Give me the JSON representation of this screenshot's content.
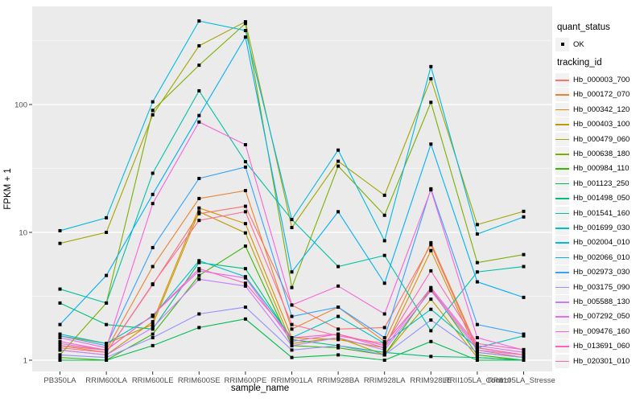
{
  "chart_data": {
    "type": "line",
    "xlabel": "sample_name",
    "ylabel": "FPKM + 1",
    "y_scale": "log10",
    "y_ticks": [
      1,
      10,
      100
    ],
    "ylim": [
      0.82,
      585
    ],
    "grid": true,
    "panel_bg": "#EBEBEB",
    "grid_color": "#FFFFFF",
    "tick_label_color": "#4D4D4D",
    "point_color": "#000000",
    "legend_position": "right",
    "legend": {
      "quant_status_title": "quant_status",
      "quant_status_items": [
        "OK"
      ],
      "tracking_id_title": "tracking_id"
    },
    "categories": [
      "PB350LA",
      "RRIM600LA",
      "RRIM600LE",
      "RRIM600SE",
      "RRIM600PE",
      "RRIM901LA",
      "RRIM928BA",
      "RRIM928LA",
      "RRIM928LE",
      "RRII105LA_Control",
      "RRII105LA_Stressed"
    ],
    "series": [
      {
        "name": "Hb_000003_700",
        "color": "#F8766D",
        "values": [
          1.25,
          1.15,
          3.9,
          14.0,
          16.0,
          2.7,
          1.75,
          1.8,
          8.0,
          1.2,
          1.05
        ]
      },
      {
        "name": "Hb_000172_070",
        "color": "#EA8331",
        "values": [
          1.3,
          1.2,
          5.4,
          18.4,
          21.2,
          1.75,
          2.6,
          1.4,
          8.3,
          1.25,
          1.1
        ]
      },
      {
        "name": "Hb_000342_120",
        "color": "#D89000",
        "values": [
          1.2,
          1.1,
          2.0,
          15.5,
          11.7,
          1.5,
          1.45,
          1.25,
          7.2,
          1.15,
          1.05
        ]
      },
      {
        "name": "Hb_000403_100",
        "color": "#C09B00",
        "values": [
          1.55,
          1.35,
          1.9,
          14.5,
          9.9,
          1.35,
          1.5,
          1.1,
          3.0,
          1.05,
          1.0
        ]
      },
      {
        "name": "Hb_000479_060",
        "color": "#A3A500",
        "values": [
          8.2,
          10.0,
          83,
          288,
          444,
          10.9,
          36,
          19.5,
          159,
          11.5,
          14.6
        ]
      },
      {
        "name": "Hb_000638_180",
        "color": "#7CAE00",
        "values": [
          1.1,
          2.8,
          90,
          203,
          430,
          3.7,
          33,
          13.6,
          104,
          5.8,
          6.7
        ]
      },
      {
        "name": "Hb_000984_110",
        "color": "#39B600",
        "values": [
          1.05,
          1.0,
          1.6,
          4.6,
          7.8,
          1.3,
          1.25,
          1.1,
          3.6,
          1.1,
          1.0
        ]
      },
      {
        "name": "Hb_001123_250",
        "color": "#00BB4E",
        "values": [
          1.0,
          1.0,
          1.3,
          1.8,
          2.1,
          1.05,
          1.1,
          1.0,
          1.4,
          1.0,
          1.0
        ]
      },
      {
        "name": "Hb_001498_050",
        "color": "#00BF7D",
        "values": [
          2.8,
          1.9,
          1.75,
          5.8,
          5.2,
          1.45,
          1.3,
          1.15,
          1.07,
          1.05,
          1.0
        ]
      },
      {
        "name": "Hb_001541_160",
        "color": "#00C1A3",
        "values": [
          3.6,
          2.8,
          29,
          128,
          35.7,
          12.6,
          5.4,
          6.6,
          1.7,
          4.9,
          5.4
        ]
      },
      {
        "name": "Hb_001699_030",
        "color": "#00BFC4",
        "values": [
          1.6,
          1.35,
          2.2,
          6.0,
          4.5,
          1.5,
          2.2,
          1.35,
          2.5,
          1.25,
          1.55
        ]
      },
      {
        "name": "Hb_002004_010",
        "color": "#00BAE0",
        "values": [
          10.3,
          13.0,
          105,
          450,
          379,
          12.6,
          44,
          8.6,
          198,
          9.7,
          13.2
        ]
      },
      {
        "name": "Hb_002066_010",
        "color": "#00B0F6",
        "values": [
          1.9,
          4.6,
          19.8,
          82,
          337,
          4.9,
          14.5,
          4.0,
          49,
          4.1,
          3.1
        ]
      },
      {
        "name": "Hb_002973_030",
        "color": "#35A2FF",
        "values": [
          1.55,
          1.3,
          7.6,
          26.4,
          32.4,
          2.2,
          2.6,
          1.5,
          21.9,
          1.9,
          1.6
        ]
      },
      {
        "name": "Hb_003175_090",
        "color": "#9590FF",
        "values": [
          1.1,
          1.05,
          1.5,
          2.3,
          2.6,
          1.2,
          1.3,
          1.1,
          2.06,
          1.15,
          1.05
        ]
      },
      {
        "name": "Hb_005588_130",
        "color": "#C77CFF",
        "values": [
          1.2,
          1.1,
          1.8,
          4.3,
          3.8,
          1.3,
          1.5,
          1.2,
          3.5,
          1.2,
          1.1
        ]
      },
      {
        "name": "Hb_007292_050",
        "color": "#E76BF3",
        "values": [
          1.35,
          1.2,
          2.25,
          5.0,
          4.4,
          1.4,
          1.6,
          1.25,
          3.7,
          1.3,
          1.15
        ]
      },
      {
        "name": "Hb_009476_160",
        "color": "#FA62DB",
        "values": [
          1.5,
          1.25,
          16.8,
          73,
          48.5,
          2.7,
          3.8,
          2.3,
          21.5,
          1.5,
          1.2
        ]
      },
      {
        "name": "Hb_013691_060",
        "color": "#FF62BC",
        "values": [
          1.4,
          1.2,
          2.25,
          5.2,
          4.0,
          1.5,
          1.6,
          1.3,
          5.0,
          1.35,
          1.21
        ]
      },
      {
        "name": "Hb_020301_010",
        "color": "#FF6A98",
        "values": [
          1.3,
          1.15,
          3.95,
          12.4,
          14.5,
          1.9,
          1.55,
          1.35,
          3.6,
          1.25,
          1.1
        ]
      }
    ]
  }
}
